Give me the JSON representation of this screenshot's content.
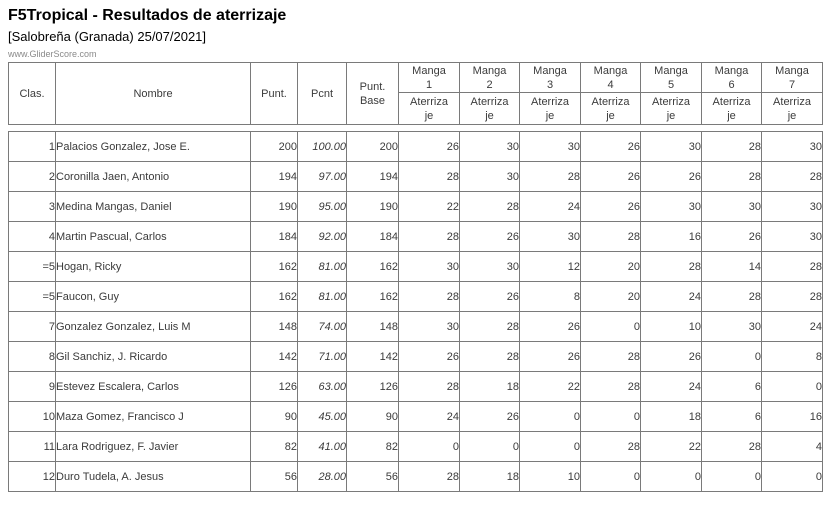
{
  "page": {
    "title": "F5Tropical - Resultados de aterrizaje",
    "subtitle": "[Salobreña (Granada) 25/07/2021]",
    "watermark": "www.GliderScore.com"
  },
  "colors": {
    "border": "#7a7a7a",
    "table_text": "#3b3b3b",
    "title_text": "#000000",
    "watermark_text": "#8a8a8a"
  },
  "table": {
    "static_columns": [
      {
        "key": "clas",
        "label": "Clas."
      },
      {
        "key": "nombre",
        "label": "Nombre"
      },
      {
        "key": "punt",
        "label": "Punt."
      },
      {
        "key": "pcnt",
        "label": "Pcnt"
      },
      {
        "key": "punt_base",
        "label": "Punt.\nBase"
      }
    ],
    "manga_headers": [
      "Manga\n1",
      "Manga\n2",
      "Manga\n3",
      "Manga\n4",
      "Manga\n5",
      "Manga\n6",
      "Manga\n7"
    ],
    "manga_subheader": "Aterriza\nje",
    "rows": [
      {
        "clas": "1",
        "nombre": "Palacios Gonzalez, Jose E.",
        "punt": "200",
        "pcnt": "100.00",
        "punt_base": "200",
        "mangas": [
          26,
          30,
          30,
          26,
          30,
          28,
          30
        ]
      },
      {
        "clas": "2",
        "nombre": "Coronilla Jaen, Antonio",
        "punt": "194",
        "pcnt": "97.00",
        "punt_base": "194",
        "mangas": [
          28,
          30,
          28,
          26,
          26,
          28,
          28
        ]
      },
      {
        "clas": "3",
        "nombre": "Medina Mangas, Daniel",
        "punt": "190",
        "pcnt": "95.00",
        "punt_base": "190",
        "mangas": [
          22,
          28,
          24,
          26,
          30,
          30,
          30
        ]
      },
      {
        "clas": "4",
        "nombre": "Martin Pascual, Carlos",
        "punt": "184",
        "pcnt": "92.00",
        "punt_base": "184",
        "mangas": [
          28,
          26,
          30,
          28,
          16,
          26,
          30
        ]
      },
      {
        "clas": "=5",
        "nombre": "Hogan, Ricky",
        "punt": "162",
        "pcnt": "81.00",
        "punt_base": "162",
        "mangas": [
          30,
          30,
          12,
          20,
          28,
          14,
          28
        ]
      },
      {
        "clas": "=5",
        "nombre": "Faucon, Guy",
        "punt": "162",
        "pcnt": "81.00",
        "punt_base": "162",
        "mangas": [
          28,
          26,
          8,
          20,
          24,
          28,
          28
        ]
      },
      {
        "clas": "7",
        "nombre": "Gonzalez Gonzalez, Luis M",
        "punt": "148",
        "pcnt": "74.00",
        "punt_base": "148",
        "mangas": [
          30,
          28,
          26,
          0,
          10,
          30,
          24
        ]
      },
      {
        "clas": "8",
        "nombre": "Gil Sanchiz, J. Ricardo",
        "punt": "142",
        "pcnt": "71.00",
        "punt_base": "142",
        "mangas": [
          26,
          28,
          26,
          28,
          26,
          0,
          8
        ]
      },
      {
        "clas": "9",
        "nombre": "Estevez Escalera, Carlos",
        "punt": "126",
        "pcnt": "63.00",
        "punt_base": "126",
        "mangas": [
          28,
          18,
          22,
          28,
          24,
          6,
          0
        ]
      },
      {
        "clas": "10",
        "nombre": "Maza Gomez, Francisco J",
        "punt": "90",
        "pcnt": "45.00",
        "punt_base": "90",
        "mangas": [
          24,
          26,
          0,
          0,
          18,
          6,
          16
        ]
      },
      {
        "clas": "11",
        "nombre": "Lara Rodriguez, F. Javier",
        "punt": "82",
        "pcnt": "41.00",
        "punt_base": "82",
        "mangas": [
          0,
          0,
          0,
          28,
          22,
          28,
          4
        ]
      },
      {
        "clas": "12",
        "nombre": "Duro Tudela, A. Jesus",
        "punt": "56",
        "pcnt": "28.00",
        "punt_base": "56",
        "mangas": [
          28,
          18,
          10,
          0,
          0,
          0,
          0
        ]
      }
    ]
  }
}
